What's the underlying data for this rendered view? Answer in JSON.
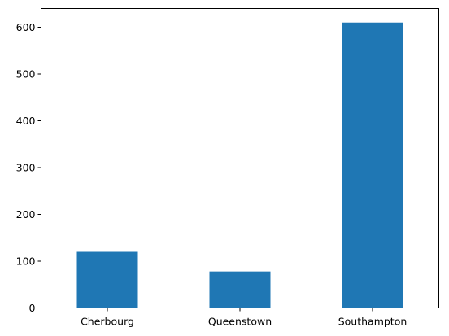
{
  "chart_data": {
    "type": "bar",
    "categories": [
      "Cherbourg",
      "Queenstown",
      "Southampton"
    ],
    "values": [
      120,
      78,
      610
    ],
    "title": "",
    "xlabel": "",
    "ylabel": "",
    "ylim": [
      0,
      640
    ],
    "yticks": [
      0,
      100,
      200,
      300,
      400,
      500,
      600
    ],
    "grid": false,
    "bar_color": "#1f77b4"
  }
}
